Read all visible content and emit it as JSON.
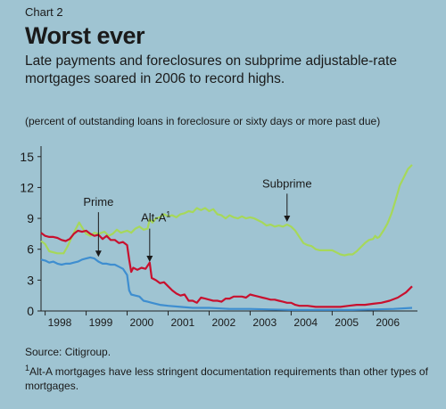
{
  "header": {
    "chart_number": "Chart 2",
    "title": "Worst ever",
    "subtitle": "Late payments and foreclosures on subprime adjustable-rate mortgages soared in 2006 to record highs.",
    "unit_note": "(percent of outstanding loans in foreclosure or sixty days or more past due)"
  },
  "footer": {
    "source": "Source: Citigroup.",
    "footnote_marker": "1",
    "footnote_text": "Alt-A mortgages have less stringent documentation requirements than other types of mortgages."
  },
  "colors": {
    "background": "#9fc4d2",
    "subprime": "#a6d85a",
    "alt_a": "#c8102e",
    "prime": "#3e8ed0",
    "axis": "#222222"
  },
  "chart_data": {
    "type": "line",
    "xlabel": "",
    "ylabel": "",
    "xlim": [
      1997.9,
      2006.95
    ],
    "ylim": [
      0,
      15.5
    ],
    "xticks": [
      1998,
      1999,
      2000,
      2001,
      2002,
      2003,
      2004,
      2005,
      2006
    ],
    "xtick_labels": [
      "1998",
      "1999",
      "2000",
      "2001",
      "2002",
      "2003",
      "2004",
      "2005",
      "2006"
    ],
    "yticks": [
      0,
      3,
      6,
      9,
      12,
      15
    ],
    "ytick_labels": [
      "0",
      "3",
      "6",
      "9",
      "12",
      "15"
    ],
    "grid": false,
    "series": [
      {
        "name": "Subprime",
        "key": "subprime",
        "points": [
          [
            1997.9,
            6.8
          ],
          [
            1998.0,
            6.5
          ],
          [
            1998.1,
            5.8
          ],
          [
            1998.3,
            5.6
          ],
          [
            1998.45,
            5.6
          ],
          [
            1998.55,
            6.3
          ],
          [
            1998.65,
            7.2
          ],
          [
            1998.75,
            8.0
          ],
          [
            1998.83,
            8.6
          ],
          [
            1998.92,
            8.0
          ],
          [
            1999.0,
            7.5
          ],
          [
            1999.1,
            7.3
          ],
          [
            1999.2,
            7.6
          ],
          [
            1999.3,
            7.5
          ],
          [
            1999.45,
            7.7
          ],
          [
            1999.55,
            7.3
          ],
          [
            1999.65,
            7.5
          ],
          [
            1999.75,
            7.9
          ],
          [
            1999.85,
            7.6
          ],
          [
            1999.92,
            7.7
          ],
          [
            2000.0,
            7.8
          ],
          [
            2000.1,
            7.6
          ],
          [
            2000.2,
            8.0
          ],
          [
            2000.3,
            8.2
          ],
          [
            2000.4,
            7.9
          ],
          [
            2000.5,
            8.0
          ],
          [
            2000.55,
            8.9
          ],
          [
            2000.62,
            8.6
          ],
          [
            2000.7,
            9.0
          ],
          [
            2000.8,
            9.1
          ],
          [
            2000.9,
            9.4
          ],
          [
            2001.0,
            9.2
          ],
          [
            2001.1,
            9.3
          ],
          [
            2001.2,
            9.1
          ],
          [
            2001.3,
            9.4
          ],
          [
            2001.4,
            9.5
          ],
          [
            2001.5,
            9.7
          ],
          [
            2001.6,
            9.6
          ],
          [
            2001.7,
            10.0
          ],
          [
            2001.8,
            9.8
          ],
          [
            2001.9,
            10.0
          ],
          [
            2002.0,
            9.7
          ],
          [
            2002.1,
            9.9
          ],
          [
            2002.2,
            9.4
          ],
          [
            2002.3,
            9.3
          ],
          [
            2002.4,
            9.0
          ],
          [
            2002.5,
            9.3
          ],
          [
            2002.6,
            9.1
          ],
          [
            2002.7,
            9.0
          ],
          [
            2002.8,
            9.2
          ],
          [
            2002.9,
            9.0
          ],
          [
            2003.0,
            9.1
          ],
          [
            2003.1,
            9.0
          ],
          [
            2003.2,
            8.8
          ],
          [
            2003.3,
            8.6
          ],
          [
            2003.4,
            8.3
          ],
          [
            2003.5,
            8.4
          ],
          [
            2003.6,
            8.2
          ],
          [
            2003.7,
            8.3
          ],
          [
            2003.8,
            8.2
          ],
          [
            2003.9,
            8.4
          ],
          [
            2004.0,
            8.2
          ],
          [
            2004.1,
            7.8
          ],
          [
            2004.2,
            7.2
          ],
          [
            2004.3,
            6.6
          ],
          [
            2004.4,
            6.4
          ],
          [
            2004.5,
            6.3
          ],
          [
            2004.6,
            6.0
          ],
          [
            2004.7,
            5.9
          ],
          [
            2004.8,
            5.9
          ],
          [
            2004.9,
            5.9
          ],
          [
            2005.0,
            5.9
          ],
          [
            2005.1,
            5.7
          ],
          [
            2005.2,
            5.5
          ],
          [
            2005.3,
            5.4
          ],
          [
            2005.4,
            5.5
          ],
          [
            2005.5,
            5.5
          ],
          [
            2005.6,
            5.8
          ],
          [
            2005.7,
            6.2
          ],
          [
            2005.8,
            6.6
          ],
          [
            2005.9,
            6.9
          ],
          [
            2006.0,
            7.0
          ],
          [
            2006.05,
            7.3
          ],
          [
            2006.1,
            7.1
          ],
          [
            2006.15,
            7.2
          ],
          [
            2006.25,
            7.8
          ],
          [
            2006.35,
            8.5
          ],
          [
            2006.45,
            9.5
          ],
          [
            2006.55,
            10.8
          ],
          [
            2006.65,
            12.2
          ],
          [
            2006.75,
            13.0
          ],
          [
            2006.85,
            13.8
          ],
          [
            2006.95,
            14.2
          ]
        ]
      },
      {
        "name": "Alt-A",
        "key": "alt_a",
        "points": [
          [
            1997.9,
            7.6
          ],
          [
            1998.0,
            7.3
          ],
          [
            1998.1,
            7.2
          ],
          [
            1998.2,
            7.2
          ],
          [
            1998.3,
            7.1
          ],
          [
            1998.4,
            6.9
          ],
          [
            1998.5,
            6.8
          ],
          [
            1998.6,
            7.0
          ],
          [
            1998.7,
            7.5
          ],
          [
            1998.8,
            7.8
          ],
          [
            1998.9,
            7.7
          ],
          [
            1999.0,
            7.8
          ],
          [
            1999.1,
            7.5
          ],
          [
            1999.2,
            7.3
          ],
          [
            1999.3,
            7.4
          ],
          [
            1999.4,
            7.0
          ],
          [
            1999.5,
            7.3
          ],
          [
            1999.6,
            6.9
          ],
          [
            1999.7,
            6.9
          ],
          [
            1999.8,
            6.6
          ],
          [
            1999.9,
            6.7
          ],
          [
            2000.0,
            6.4
          ],
          [
            2000.05,
            5.0
          ],
          [
            2000.1,
            3.8
          ],
          [
            2000.15,
            4.2
          ],
          [
            2000.25,
            4.0
          ],
          [
            2000.35,
            4.2
          ],
          [
            2000.45,
            4.1
          ],
          [
            2000.55,
            4.7
          ],
          [
            2000.6,
            3.2
          ],
          [
            2000.7,
            3.0
          ],
          [
            2000.8,
            2.7
          ],
          [
            2000.9,
            2.8
          ],
          [
            2001.0,
            2.4
          ],
          [
            2001.1,
            2.0
          ],
          [
            2001.2,
            1.7
          ],
          [
            2001.3,
            1.5
          ],
          [
            2001.4,
            1.6
          ],
          [
            2001.5,
            1.0
          ],
          [
            2001.6,
            1.0
          ],
          [
            2001.7,
            0.8
          ],
          [
            2001.8,
            1.3
          ],
          [
            2001.9,
            1.2
          ],
          [
            2002.0,
            1.1
          ],
          [
            2002.1,
            1.0
          ],
          [
            2002.2,
            1.0
          ],
          [
            2002.3,
            0.9
          ],
          [
            2002.4,
            1.2
          ],
          [
            2002.5,
            1.2
          ],
          [
            2002.6,
            1.4
          ],
          [
            2002.7,
            1.4
          ],
          [
            2002.8,
            1.4
          ],
          [
            2002.9,
            1.3
          ],
          [
            2003.0,
            1.6
          ],
          [
            2003.1,
            1.5
          ],
          [
            2003.2,
            1.4
          ],
          [
            2003.3,
            1.3
          ],
          [
            2003.4,
            1.2
          ],
          [
            2003.5,
            1.1
          ],
          [
            2003.6,
            1.1
          ],
          [
            2003.7,
            1.0
          ],
          [
            2003.8,
            0.9
          ],
          [
            2003.9,
            0.8
          ],
          [
            2004.0,
            0.8
          ],
          [
            2004.1,
            0.6
          ],
          [
            2004.2,
            0.5
          ],
          [
            2004.4,
            0.5
          ],
          [
            2004.6,
            0.4
          ],
          [
            2004.8,
            0.4
          ],
          [
            2005.0,
            0.4
          ],
          [
            2005.2,
            0.4
          ],
          [
            2005.4,
            0.5
          ],
          [
            2005.6,
            0.6
          ],
          [
            2005.8,
            0.6
          ],
          [
            2006.0,
            0.7
          ],
          [
            2006.2,
            0.8
          ],
          [
            2006.4,
            1.0
          ],
          [
            2006.6,
            1.3
          ],
          [
            2006.8,
            1.8
          ],
          [
            2006.95,
            2.4
          ]
        ]
      },
      {
        "name": "Prime",
        "key": "prime",
        "points": [
          [
            1997.9,
            5.0
          ],
          [
            1998.0,
            4.9
          ],
          [
            1998.1,
            4.7
          ],
          [
            1998.2,
            4.8
          ],
          [
            1998.3,
            4.6
          ],
          [
            1998.4,
            4.5
          ],
          [
            1998.5,
            4.6
          ],
          [
            1998.6,
            4.6
          ],
          [
            1998.7,
            4.7
          ],
          [
            1998.8,
            4.8
          ],
          [
            1998.9,
            5.0
          ],
          [
            1999.0,
            5.1
          ],
          [
            1999.1,
            5.2
          ],
          [
            1999.2,
            5.1
          ],
          [
            1999.3,
            4.8
          ],
          [
            1999.4,
            4.6
          ],
          [
            1999.5,
            4.6
          ],
          [
            1999.6,
            4.5
          ],
          [
            1999.7,
            4.5
          ],
          [
            1999.8,
            4.3
          ],
          [
            1999.9,
            4.1
          ],
          [
            2000.0,
            3.5
          ],
          [
            2000.05,
            2.0
          ],
          [
            2000.1,
            1.6
          ],
          [
            2000.2,
            1.5
          ],
          [
            2000.3,
            1.4
          ],
          [
            2000.4,
            1.0
          ],
          [
            2000.5,
            0.9
          ],
          [
            2000.6,
            0.8
          ],
          [
            2000.8,
            0.6
          ],
          [
            2001.0,
            0.5
          ],
          [
            2001.3,
            0.4
          ],
          [
            2001.6,
            0.3
          ],
          [
            2002.0,
            0.3
          ],
          [
            2002.5,
            0.2
          ],
          [
            2003.0,
            0.2
          ],
          [
            2003.5,
            0.15
          ],
          [
            2004.0,
            0.1
          ],
          [
            2004.5,
            0.1
          ],
          [
            2005.0,
            0.1
          ],
          [
            2005.5,
            0.1
          ],
          [
            2006.0,
            0.15
          ],
          [
            2006.5,
            0.2
          ],
          [
            2006.95,
            0.3
          ]
        ]
      }
    ],
    "annotations": [
      {
        "text": "Prime",
        "target_series": "prime",
        "x": 1999.3,
        "y": 5.0
      },
      {
        "text": "Alt-A",
        "superscript": "1",
        "target_series": "alt_a",
        "x": 2000.55,
        "y": 4.5
      },
      {
        "text": "Subprime",
        "target_series": "subprime",
        "x": 2003.9,
        "y": 8.4
      }
    ]
  }
}
